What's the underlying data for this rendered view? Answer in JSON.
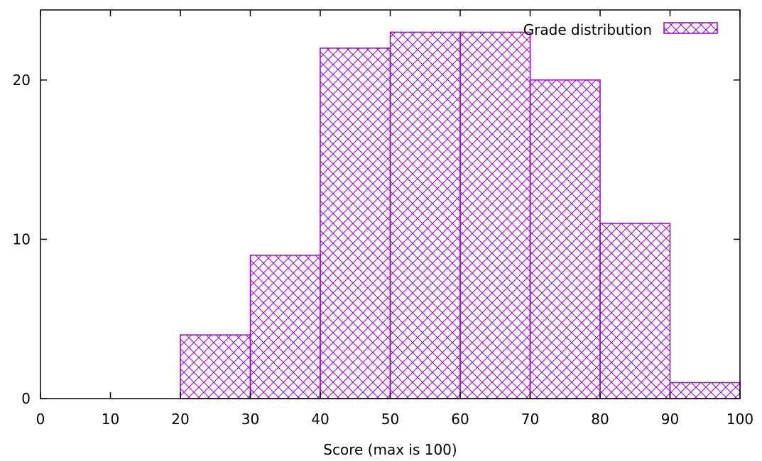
{
  "chart_data": {
    "type": "bar",
    "subtype": "histogram",
    "xlabel": "Score (max is 100)",
    "ylabel": "",
    "xlim": [
      0,
      100
    ],
    "ylim": [
      0,
      24.4
    ],
    "x_ticks": [
      0,
      10,
      20,
      30,
      40,
      50,
      60,
      70,
      80,
      90,
      100
    ],
    "y_ticks": [
      0,
      10,
      20
    ],
    "bin_width": 10,
    "bins": [
      {
        "start": 20,
        "end": 30,
        "value": 4
      },
      {
        "start": 30,
        "end": 40,
        "value": 9
      },
      {
        "start": 40,
        "end": 50,
        "value": 22
      },
      {
        "start": 50,
        "end": 60,
        "value": 23
      },
      {
        "start": 60,
        "end": 70,
        "value": 23
      },
      {
        "start": 70,
        "end": 80,
        "value": 20
      },
      {
        "start": 80,
        "end": 90,
        "value": 11
      },
      {
        "start": 90,
        "end": 100,
        "value": 1
      }
    ],
    "series": [
      {
        "name": "Grade distribution",
        "color": "#9400d3",
        "fill": "crosshatch"
      }
    ],
    "legend_position": "top-right",
    "grid": false
  }
}
